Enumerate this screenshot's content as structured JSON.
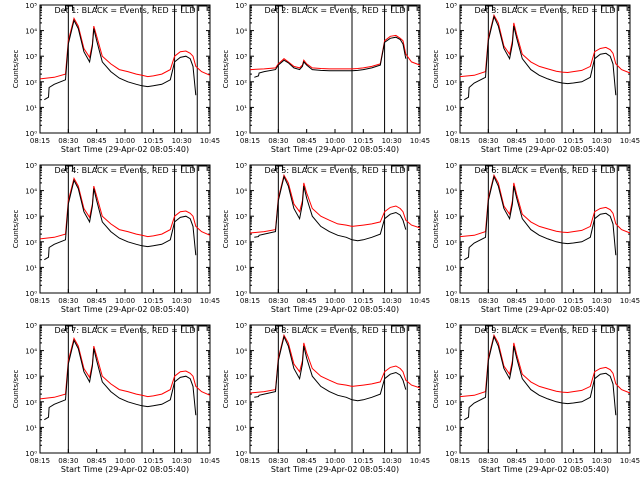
{
  "colors": {
    "events": "#000000",
    "lld": "#ff0000",
    "axis": "#000000",
    "background": "#ffffff"
  },
  "common": {
    "xlabel": "Start Time (29-Apr-02 08:05:40)",
    "ylabel": "Counts/sec",
    "xticks": [
      "08:15",
      "08:30",
      "08:45",
      "10:00",
      "10:15",
      "10:30",
      "10:45"
    ],
    "yticks": [
      "10⁰",
      "10¹",
      "10²",
      "10³",
      "10⁴",
      "10⁵"
    ],
    "ylim": [
      1,
      100000
    ],
    "yscale": "log",
    "vertical_markers": [
      1,
      3.6,
      4.75,
      5.55
    ],
    "top_brackets": [
      [
        0.9,
        1.15
      ],
      [
        5.0,
        5.4
      ],
      [
        5.6,
        5.9
      ]
    ]
  },
  "panels": [
    {
      "title": "Det 1: BLACK = Events, RED = LLD",
      "profile": "A"
    },
    {
      "title": "Det 2: BLACK = Events, RED = LLD",
      "profile": "B"
    },
    {
      "title": "Det 3: BLACK = Events, RED = LLD",
      "profile": "C"
    },
    {
      "title": "Det 4: BLACK = Events, RED = LLD",
      "profile": "A"
    },
    {
      "title": "Det 5: BLACK = Events, RED = LLD",
      "profile": "D"
    },
    {
      "title": "Det 6: BLACK = Events, RED = LLD",
      "profile": "C"
    },
    {
      "title": "Det 7: BLACK = Events, RED = LLD",
      "profile": "A"
    },
    {
      "title": "Det 8: BLACK = Events, RED = LLD",
      "profile": "D"
    },
    {
      "title": "Det 9: BLACK = Events, RED = LLD",
      "profile": "C"
    }
  ],
  "chart_data": {
    "type": "line",
    "note_axes": "x in tick-index units (0 = 08:15 … 6 = 10:45); y in Counts/sec, log scale",
    "profiles": {
      "A": {
        "lld": {
          "x": [
            0,
            0.5,
            0.9,
            1.0,
            1.2,
            1.35,
            1.55,
            1.75,
            1.85,
            1.9,
            2.0,
            2.2,
            2.5,
            2.8,
            3.1,
            3.4,
            3.6,
            3.8,
            4.0,
            4.3,
            4.6,
            4.75,
            4.95,
            5.15,
            5.3,
            5.4,
            5.5,
            5.7,
            6.0
          ],
          "y": [
            130,
            150,
            200,
            4000,
            30000,
            15000,
            2000,
            900,
            3000,
            15000,
            6000,
            1000,
            500,
            300,
            250,
            200,
            180,
            160,
            170,
            200,
            300,
            1000,
            1500,
            1600,
            1300,
            1000,
            400,
            250,
            180
          ]
        },
        "events": {
          "x": [
            0.15,
            0.3,
            0.32,
            0.5,
            0.9,
            1.0,
            1.2,
            1.35,
            1.55,
            1.75,
            1.85,
            1.9,
            2.0,
            2.2,
            2.5,
            2.8,
            3.1,
            3.4,
            3.6,
            3.8,
            4.0,
            4.3,
            4.6,
            4.75,
            4.95,
            5.15,
            5.3,
            5.4,
            5.5
          ],
          "y": [
            20,
            25,
            60,
            80,
            120,
            3000,
            25000,
            12000,
            1500,
            600,
            2500,
            12000,
            4000,
            600,
            250,
            140,
            100,
            80,
            70,
            65,
            70,
            80,
            120,
            600,
            900,
            1000,
            800,
            400,
            30
          ]
        }
      },
      "B": {
        "lld": {
          "x": [
            0,
            0.5,
            0.9,
            1.0,
            1.2,
            1.35,
            1.55,
            1.75,
            1.85,
            1.9,
            2.0,
            2.2,
            2.5,
            2.8,
            3.1,
            3.4,
            3.6,
            3.8,
            4.0,
            4.3,
            4.6,
            4.75,
            4.95,
            5.15,
            5.3,
            5.4,
            5.5,
            5.7,
            6.0
          ],
          "y": [
            300,
            320,
            350,
            500,
            800,
            600,
            400,
            350,
            450,
            700,
            500,
            350,
            330,
            320,
            320,
            320,
            320,
            330,
            350,
            400,
            500,
            4000,
            6000,
            6500,
            5000,
            4000,
            1200,
            600,
            450
          ]
        },
        "events": {
          "x": [
            0.15,
            0.3,
            0.32,
            0.5,
            0.9,
            1.0,
            1.2,
            1.35,
            1.55,
            1.75,
            1.85,
            1.9,
            2.0,
            2.2,
            2.5,
            2.8,
            3.1,
            3.4,
            3.6,
            3.8,
            4.0,
            4.3,
            4.6,
            4.75,
            4.95,
            5.15,
            5.3,
            5.4,
            5.5
          ],
          "y": [
            150,
            170,
            220,
            250,
            300,
            450,
            700,
            550,
            350,
            300,
            400,
            600,
            450,
            300,
            280,
            270,
            270,
            270,
            270,
            280,
            300,
            350,
            450,
            3500,
            5000,
            5500,
            4500,
            3000,
            800
          ]
        }
      },
      "C": {
        "lld": {
          "x": [
            0,
            0.5,
            0.9,
            1.0,
            1.2,
            1.35,
            1.55,
            1.75,
            1.85,
            1.9,
            2.0,
            2.2,
            2.5,
            2.8,
            3.1,
            3.4,
            3.6,
            3.8,
            4.0,
            4.3,
            4.6,
            4.75,
            4.95,
            5.15,
            5.3,
            5.4,
            5.5,
            5.7,
            6.0
          ],
          "y": [
            160,
            180,
            250,
            5000,
            40000,
            20000,
            2500,
            1200,
            4000,
            20000,
            7000,
            1200,
            600,
            400,
            320,
            260,
            240,
            230,
            250,
            280,
            400,
            1500,
            2000,
            2200,
            1800,
            1300,
            500,
            300,
            220
          ]
        },
        "events": {
          "x": [
            0.15,
            0.3,
            0.32,
            0.5,
            0.9,
            1.0,
            1.2,
            1.35,
            1.55,
            1.75,
            1.85,
            1.9,
            2.0,
            2.2,
            2.5,
            2.8,
            3.1,
            3.4,
            3.6,
            3.8,
            4.0,
            4.3,
            4.6,
            4.75,
            4.95,
            5.15,
            5.3,
            5.4,
            5.5
          ],
          "y": [
            20,
            25,
            60,
            90,
            150,
            4000,
            35000,
            15000,
            2000,
            800,
            3000,
            15000,
            5000,
            800,
            300,
            180,
            130,
            100,
            90,
            85,
            90,
            100,
            150,
            800,
            1200,
            1300,
            1000,
            500,
            30
          ]
        }
      },
      "D": {
        "lld": {
          "x": [
            0,
            0.5,
            0.9,
            1.0,
            1.2,
            1.35,
            1.55,
            1.75,
            1.85,
            1.9,
            2.0,
            2.2,
            2.5,
            2.8,
            3.1,
            3.4,
            3.6,
            3.8,
            4.0,
            4.3,
            4.6,
            4.75,
            4.95,
            5.15,
            5.3,
            5.4,
            5.5,
            5.7,
            6.0
          ],
          "y": [
            220,
            250,
            300,
            5000,
            40000,
            20000,
            3000,
            1500,
            4000,
            20000,
            8000,
            2000,
            1000,
            700,
            500,
            450,
            400,
            420,
            450,
            500,
            600,
            1500,
            2200,
            2500,
            2000,
            1500,
            700,
            450,
            350
          ]
        },
        "events": {
          "x": [
            0.15,
            0.3,
            0.32,
            0.5,
            0.9,
            1.0,
            1.2,
            1.35,
            1.55,
            1.75,
            1.85,
            1.9,
            2.0,
            2.2,
            2.5,
            2.8,
            3.1,
            3.4,
            3.6,
            3.8,
            4.0,
            4.3,
            4.6,
            4.75,
            4.95,
            5.15,
            5.3,
            5.4,
            5.5
          ],
          "y": [
            150,
            160,
            180,
            200,
            250,
            4000,
            35000,
            15000,
            2000,
            800,
            3000,
            15000,
            5000,
            1000,
            400,
            250,
            180,
            150,
            120,
            110,
            120,
            150,
            200,
            800,
            1200,
            1400,
            1100,
            700,
            300
          ]
        }
      }
    }
  }
}
